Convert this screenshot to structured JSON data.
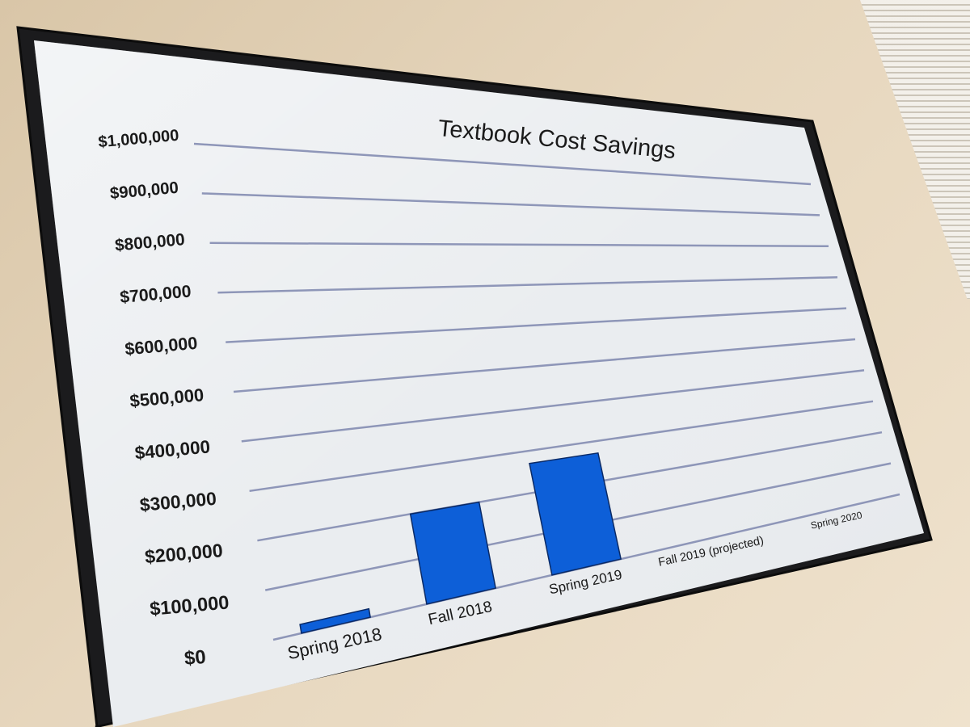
{
  "chart_data": {
    "type": "bar",
    "title": "Textbook Cost Savings",
    "categories": [
      "Spring 2018",
      "Fall 2018",
      "Spring 2019",
      "Fall 2019 (projected)",
      "Spring 2020"
    ],
    "values": [
      18000,
      200000,
      270000,
      null,
      null
    ],
    "ylim": [
      0,
      1000000
    ],
    "yticks": [
      "$0",
      "$100,000",
      "$200,000",
      "$300,000",
      "$400,000",
      "$500,000",
      "$600,000",
      "$700,000",
      "$800,000",
      "$900,000",
      "$1,000,000"
    ],
    "grid": true,
    "bar_color": "#0d5fd8",
    "grid_color": "#8e96b8"
  }
}
